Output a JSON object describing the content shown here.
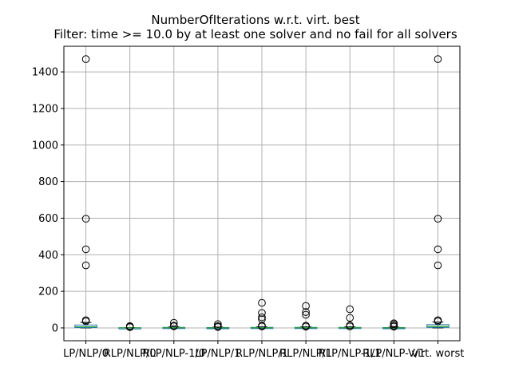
{
  "chart_data": {
    "type": "box",
    "title": "NumberOfIterations w.r.t. virt. best",
    "subtitle": "Filter: time >= 10.0 by at least one solver and no fail for all solvers",
    "xlabel": "",
    "ylabel": "",
    "ylim": [
      -70,
      1540
    ],
    "yticks": [
      0,
      200,
      400,
      600,
      800,
      1000,
      1200,
      1400
    ],
    "grid": true,
    "categories": [
      "LP/NLP/0",
      "RLP/NLP/0",
      "RLP/NLP-1/0",
      "LP/NLP/1",
      "RLP/NLP/1",
      "RLP/NLP/1",
      "RLP/NLP-1/1",
      "RLP/NLP-V/1",
      "virt. worst"
    ],
    "boxes": [
      {
        "q1": 2,
        "median": 6,
        "q3": 16,
        "whisker_low": 0,
        "whisker_high": 30,
        "fliers": [
          1470,
          597,
          430,
          342,
          42,
          36
        ]
      },
      {
        "q1": 0,
        "median": 0.5,
        "q3": 1,
        "whisker_low": 0,
        "whisker_high": 2,
        "fliers": [
          10,
          6,
          4
        ]
      },
      {
        "q1": 0,
        "median": 1,
        "q3": 3,
        "whisker_low": 0,
        "whisker_high": 6,
        "fliers": [
          28,
          12,
          9
        ]
      },
      {
        "q1": 0,
        "median": 0.5,
        "q3": 2,
        "whisker_low": 0,
        "whisker_high": 4,
        "fliers": [
          21,
          10,
          5
        ]
      },
      {
        "q1": 0,
        "median": 1,
        "q3": 3,
        "whisker_low": 0,
        "whisker_high": 6,
        "fliers": [
          137,
          82,
          58,
          47,
          12,
          8
        ]
      },
      {
        "q1": 0,
        "median": 1,
        "q3": 3,
        "whisker_low": 0,
        "whisker_high": 6,
        "fliers": [
          120,
          87,
          72,
          12,
          7
        ]
      },
      {
        "q1": 0,
        "median": 1,
        "q3": 3,
        "whisker_low": 0,
        "whisker_high": 6,
        "fliers": [
          102,
          55,
          14,
          8
        ]
      },
      {
        "q1": 0,
        "median": 0.5,
        "q3": 2,
        "whisker_low": 0,
        "whisker_high": 4,
        "fliers": [
          25,
          20,
          12,
          7
        ]
      },
      {
        "q1": 3,
        "median": 8,
        "q3": 18,
        "whisker_low": 0,
        "whisker_high": 32,
        "fliers": [
          1470,
          597,
          430,
          342,
          42,
          36
        ]
      }
    ],
    "colors": {
      "box": "#1f77b4",
      "median": "#2ca02c",
      "grid": "#b0b0b0",
      "flier": "#000000"
    }
  }
}
